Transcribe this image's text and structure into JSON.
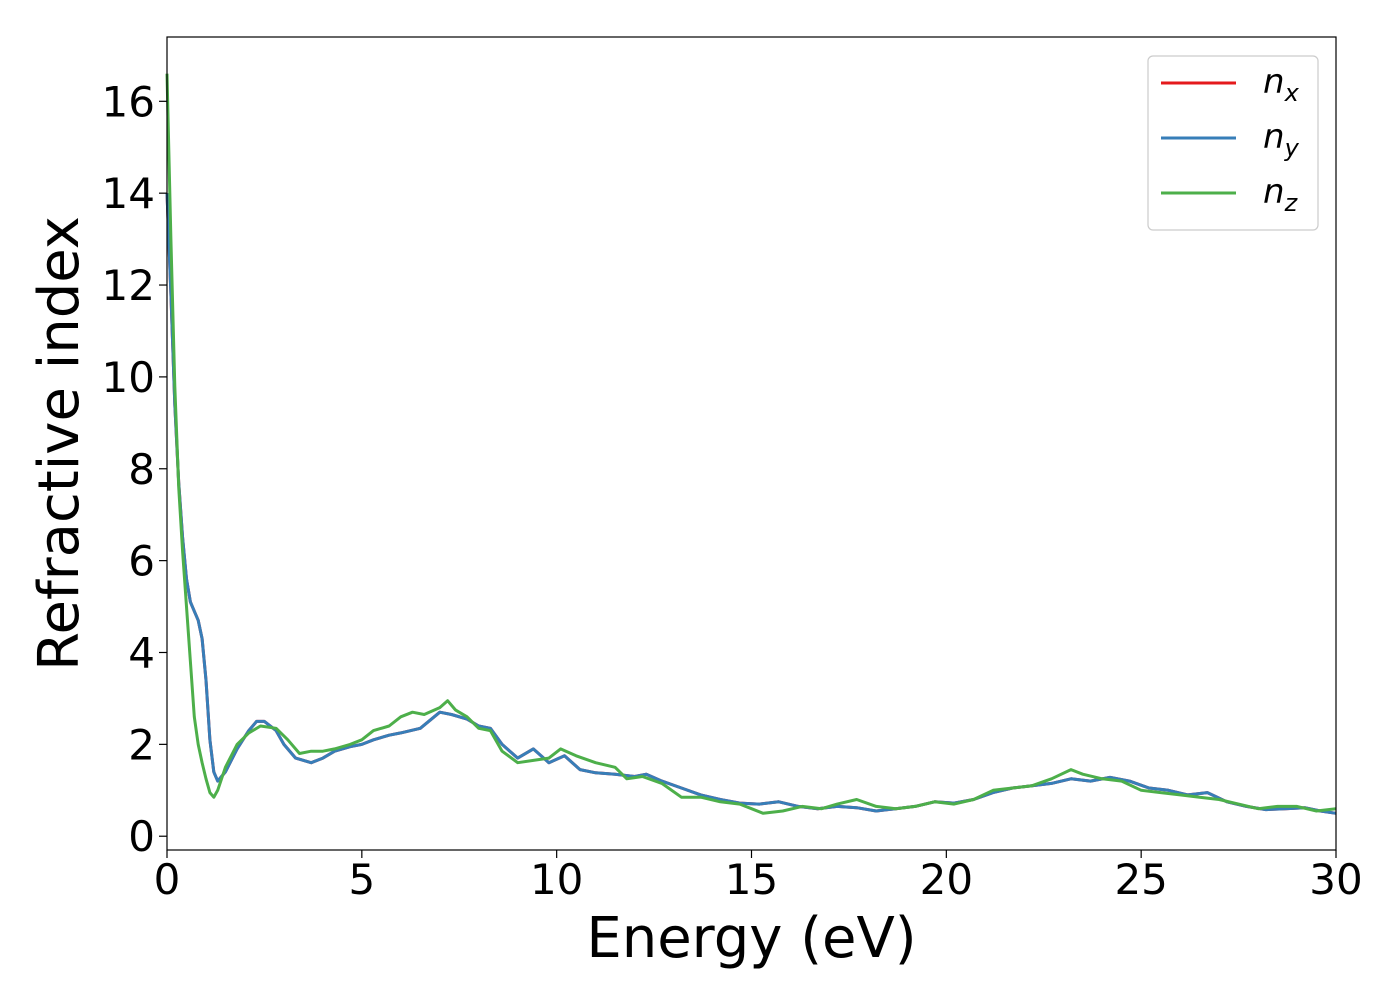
{
  "chart_data": {
    "type": "line",
    "title": "",
    "xlabel": "Energy (eV)",
    "ylabel": "Refractive index",
    "xlim": [
      0,
      30
    ],
    "ylim": [
      -0.3,
      17.4
    ],
    "xticks": [
      0,
      5,
      10,
      15,
      20,
      25,
      30
    ],
    "yticks": [
      0,
      2,
      4,
      6,
      8,
      10,
      12,
      14,
      16
    ],
    "grid": false,
    "legend_position": "top-right",
    "series": [
      {
        "name": "n",
        "subscript": "x",
        "color": "#e41a1c",
        "points": [
          [
            0,
            14.0
          ],
          [
            0.1,
            11.8
          ],
          [
            0.2,
            9.4
          ],
          [
            0.3,
            7.7
          ],
          [
            0.4,
            6.5
          ],
          [
            0.5,
            5.6
          ],
          [
            0.6,
            5.1
          ],
          [
            0.7,
            4.9
          ],
          [
            0.8,
            4.7
          ],
          [
            0.9,
            4.3
          ],
          [
            1.0,
            3.4
          ],
          [
            1.1,
            2.1
          ],
          [
            1.2,
            1.4
          ],
          [
            1.3,
            1.2
          ],
          [
            1.5,
            1.4
          ],
          [
            1.8,
            1.9
          ],
          [
            2.1,
            2.3
          ],
          [
            2.3,
            2.5
          ],
          [
            2.5,
            2.5
          ],
          [
            2.8,
            2.3
          ],
          [
            3.0,
            2.0
          ],
          [
            3.3,
            1.7
          ],
          [
            3.7,
            1.6
          ],
          [
            4.0,
            1.7
          ],
          [
            4.3,
            1.85
          ],
          [
            4.7,
            1.95
          ],
          [
            5.0,
            2.0
          ],
          [
            5.3,
            2.1
          ],
          [
            5.7,
            2.2
          ],
          [
            6.0,
            2.25
          ],
          [
            6.5,
            2.35
          ],
          [
            7.0,
            2.7
          ],
          [
            7.3,
            2.65
          ],
          [
            7.7,
            2.55
          ],
          [
            8.0,
            2.4
          ],
          [
            8.3,
            2.35
          ],
          [
            8.6,
            2.0
          ],
          [
            9.0,
            1.7
          ],
          [
            9.4,
            1.9
          ],
          [
            9.8,
            1.6
          ],
          [
            10.2,
            1.75
          ],
          [
            10.6,
            1.45
          ],
          [
            11.0,
            1.38
          ],
          [
            11.5,
            1.35
          ],
          [
            12.0,
            1.3
          ],
          [
            12.3,
            1.35
          ],
          [
            12.7,
            1.2
          ],
          [
            13.2,
            1.05
          ],
          [
            13.7,
            0.9
          ],
          [
            14.2,
            0.8
          ],
          [
            14.7,
            0.72
          ],
          [
            15.2,
            0.7
          ],
          [
            15.7,
            0.75
          ],
          [
            16.2,
            0.65
          ],
          [
            16.7,
            0.6
          ],
          [
            17.2,
            0.65
          ],
          [
            17.7,
            0.62
          ],
          [
            18.2,
            0.55
          ],
          [
            18.7,
            0.6
          ],
          [
            19.2,
            0.65
          ],
          [
            19.7,
            0.75
          ],
          [
            20.2,
            0.72
          ],
          [
            20.7,
            0.8
          ],
          [
            21.2,
            0.95
          ],
          [
            21.7,
            1.05
          ],
          [
            22.2,
            1.1
          ],
          [
            22.7,
            1.15
          ],
          [
            23.2,
            1.25
          ],
          [
            23.7,
            1.2
          ],
          [
            24.2,
            1.28
          ],
          [
            24.7,
            1.2
          ],
          [
            25.2,
            1.05
          ],
          [
            25.7,
            1.0
          ],
          [
            26.2,
            0.9
          ],
          [
            26.7,
            0.95
          ],
          [
            27.2,
            0.75
          ],
          [
            27.7,
            0.65
          ],
          [
            28.2,
            0.58
          ],
          [
            28.7,
            0.6
          ],
          [
            29.2,
            0.62
          ],
          [
            29.6,
            0.55
          ],
          [
            30.0,
            0.5
          ]
        ]
      },
      {
        "name": "n",
        "subscript": "y",
        "color": "#377eb8",
        "points": [
          [
            0,
            14.0
          ],
          [
            0.1,
            11.8
          ],
          [
            0.2,
            9.4
          ],
          [
            0.3,
            7.7
          ],
          [
            0.4,
            6.5
          ],
          [
            0.5,
            5.6
          ],
          [
            0.6,
            5.1
          ],
          [
            0.7,
            4.9
          ],
          [
            0.8,
            4.7
          ],
          [
            0.9,
            4.3
          ],
          [
            1.0,
            3.4
          ],
          [
            1.1,
            2.1
          ],
          [
            1.2,
            1.4
          ],
          [
            1.3,
            1.2
          ],
          [
            1.5,
            1.4
          ],
          [
            1.8,
            1.9
          ],
          [
            2.1,
            2.3
          ],
          [
            2.3,
            2.5
          ],
          [
            2.5,
            2.5
          ],
          [
            2.8,
            2.3
          ],
          [
            3.0,
            2.0
          ],
          [
            3.3,
            1.7
          ],
          [
            3.7,
            1.6
          ],
          [
            4.0,
            1.7
          ],
          [
            4.3,
            1.85
          ],
          [
            4.7,
            1.95
          ],
          [
            5.0,
            2.0
          ],
          [
            5.3,
            2.1
          ],
          [
            5.7,
            2.2
          ],
          [
            6.0,
            2.25
          ],
          [
            6.5,
            2.35
          ],
          [
            7.0,
            2.7
          ],
          [
            7.3,
            2.65
          ],
          [
            7.7,
            2.55
          ],
          [
            8.0,
            2.4
          ],
          [
            8.3,
            2.35
          ],
          [
            8.6,
            2.0
          ],
          [
            9.0,
            1.7
          ],
          [
            9.4,
            1.9
          ],
          [
            9.8,
            1.6
          ],
          [
            10.2,
            1.75
          ],
          [
            10.6,
            1.45
          ],
          [
            11.0,
            1.38
          ],
          [
            11.5,
            1.35
          ],
          [
            12.0,
            1.3
          ],
          [
            12.3,
            1.35
          ],
          [
            12.7,
            1.2
          ],
          [
            13.2,
            1.05
          ],
          [
            13.7,
            0.9
          ],
          [
            14.2,
            0.8
          ],
          [
            14.7,
            0.72
          ],
          [
            15.2,
            0.7
          ],
          [
            15.7,
            0.75
          ],
          [
            16.2,
            0.65
          ],
          [
            16.7,
            0.6
          ],
          [
            17.2,
            0.65
          ],
          [
            17.7,
            0.62
          ],
          [
            18.2,
            0.55
          ],
          [
            18.7,
            0.6
          ],
          [
            19.2,
            0.65
          ],
          [
            19.7,
            0.75
          ],
          [
            20.2,
            0.72
          ],
          [
            20.7,
            0.8
          ],
          [
            21.2,
            0.95
          ],
          [
            21.7,
            1.05
          ],
          [
            22.2,
            1.1
          ],
          [
            22.7,
            1.15
          ],
          [
            23.2,
            1.25
          ],
          [
            23.7,
            1.2
          ],
          [
            24.2,
            1.28
          ],
          [
            24.7,
            1.2
          ],
          [
            25.2,
            1.05
          ],
          [
            25.7,
            1.0
          ],
          [
            26.2,
            0.9
          ],
          [
            26.7,
            0.95
          ],
          [
            27.2,
            0.75
          ],
          [
            27.7,
            0.65
          ],
          [
            28.2,
            0.58
          ],
          [
            28.7,
            0.6
          ],
          [
            29.2,
            0.62
          ],
          [
            29.6,
            0.55
          ],
          [
            30.0,
            0.5
          ]
        ]
      },
      {
        "name": "n",
        "subscript": "z",
        "color": "#4daf4a",
        "points": [
          [
            0,
            16.6
          ],
          [
            0.1,
            13.0
          ],
          [
            0.2,
            9.8
          ],
          [
            0.3,
            7.6
          ],
          [
            0.4,
            6.2
          ],
          [
            0.5,
            5.0
          ],
          [
            0.6,
            3.8
          ],
          [
            0.7,
            2.6
          ],
          [
            0.8,
            2.0
          ],
          [
            0.9,
            1.6
          ],
          [
            1.0,
            1.25
          ],
          [
            1.1,
            0.95
          ],
          [
            1.2,
            0.85
          ],
          [
            1.3,
            1.0
          ],
          [
            1.5,
            1.5
          ],
          [
            1.8,
            2.0
          ],
          [
            2.1,
            2.25
          ],
          [
            2.4,
            2.4
          ],
          [
            2.8,
            2.35
          ],
          [
            3.1,
            2.1
          ],
          [
            3.4,
            1.8
          ],
          [
            3.7,
            1.85
          ],
          [
            4.0,
            1.85
          ],
          [
            4.3,
            1.9
          ],
          [
            4.7,
            2.0
          ],
          [
            5.0,
            2.1
          ],
          [
            5.3,
            2.3
          ],
          [
            5.7,
            2.4
          ],
          [
            6.0,
            2.6
          ],
          [
            6.3,
            2.7
          ],
          [
            6.6,
            2.65
          ],
          [
            7.0,
            2.8
          ],
          [
            7.2,
            2.95
          ],
          [
            7.4,
            2.75
          ],
          [
            7.7,
            2.6
          ],
          [
            8.0,
            2.35
          ],
          [
            8.3,
            2.3
          ],
          [
            8.6,
            1.85
          ],
          [
            9.0,
            1.6
          ],
          [
            9.4,
            1.65
          ],
          [
            9.8,
            1.7
          ],
          [
            10.1,
            1.9
          ],
          [
            10.5,
            1.75
          ],
          [
            11.0,
            1.6
          ],
          [
            11.5,
            1.5
          ],
          [
            11.8,
            1.25
          ],
          [
            12.2,
            1.3
          ],
          [
            12.7,
            1.15
          ],
          [
            13.2,
            0.85
          ],
          [
            13.7,
            0.85
          ],
          [
            14.2,
            0.75
          ],
          [
            14.7,
            0.7
          ],
          [
            15.0,
            0.6
          ],
          [
            15.3,
            0.5
          ],
          [
            15.8,
            0.55
          ],
          [
            16.3,
            0.65
          ],
          [
            16.8,
            0.6
          ],
          [
            17.2,
            0.7
          ],
          [
            17.7,
            0.8
          ],
          [
            18.2,
            0.65
          ],
          [
            18.7,
            0.6
          ],
          [
            19.2,
            0.65
          ],
          [
            19.7,
            0.75
          ],
          [
            20.2,
            0.7
          ],
          [
            20.7,
            0.8
          ],
          [
            21.2,
            1.0
          ],
          [
            21.7,
            1.05
          ],
          [
            22.2,
            1.1
          ],
          [
            22.7,
            1.25
          ],
          [
            23.2,
            1.45
          ],
          [
            23.5,
            1.35
          ],
          [
            24.0,
            1.25
          ],
          [
            24.5,
            1.2
          ],
          [
            25.0,
            1.0
          ],
          [
            25.5,
            0.95
          ],
          [
            26.0,
            0.9
          ],
          [
            26.5,
            0.85
          ],
          [
            27.0,
            0.8
          ],
          [
            27.5,
            0.7
          ],
          [
            28.0,
            0.6
          ],
          [
            28.5,
            0.65
          ],
          [
            29.0,
            0.65
          ],
          [
            29.5,
            0.55
          ],
          [
            30.0,
            0.6
          ]
        ]
      }
    ]
  }
}
